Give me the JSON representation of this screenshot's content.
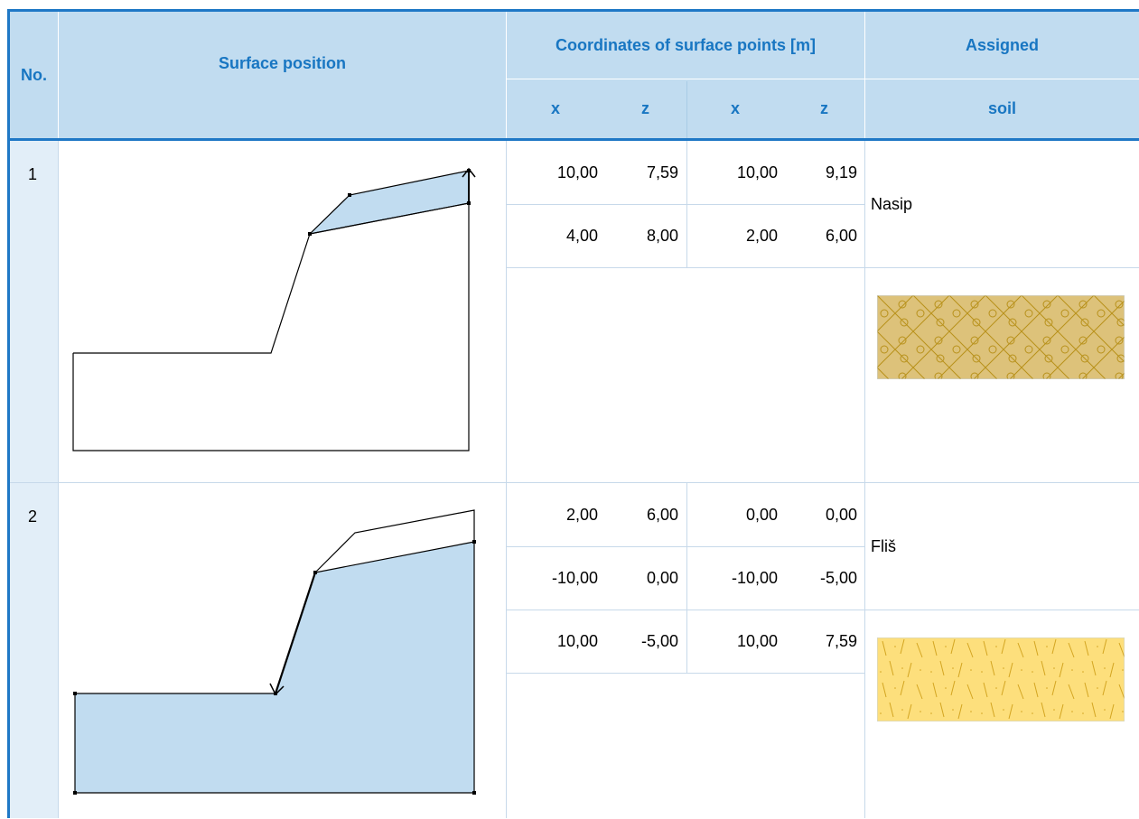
{
  "header": {
    "no": "No.",
    "position": "Surface position",
    "coords": "Coordinates of surface points [m]",
    "assigned": "Assigned",
    "soil": "soil",
    "x1": "x",
    "z1": "z",
    "x2": "x",
    "z2": "z"
  },
  "rows": [
    {
      "no": "1",
      "soil_name": "Nasip",
      "soil_pattern_icon": "gravel-hatch-pattern-icon",
      "points": [
        [
          "10,00",
          "7,59",
          "10,00",
          "9,19"
        ],
        [
          "4,00",
          "8,00",
          "2,00",
          "6,00"
        ]
      ]
    },
    {
      "no": "2",
      "soil_name": "Fliš",
      "soil_pattern_icon": "flysch-hatch-pattern-icon",
      "points": [
        [
          "2,00",
          "6,00",
          "0,00",
          "0,00"
        ],
        [
          "-10,00",
          "0,00",
          "-10,00",
          "-5,00"
        ],
        [
          "10,00",
          "-5,00",
          "10,00",
          "7,59"
        ]
      ]
    }
  ],
  "colors": {
    "header_bg": "#c1dcf0",
    "header_text": "#1876c2",
    "border": "#1f78c6",
    "highlight_fill": "#c1dcf0",
    "nasip_pattern": "#ddc27a",
    "flis_pattern": "#fddf7c"
  }
}
